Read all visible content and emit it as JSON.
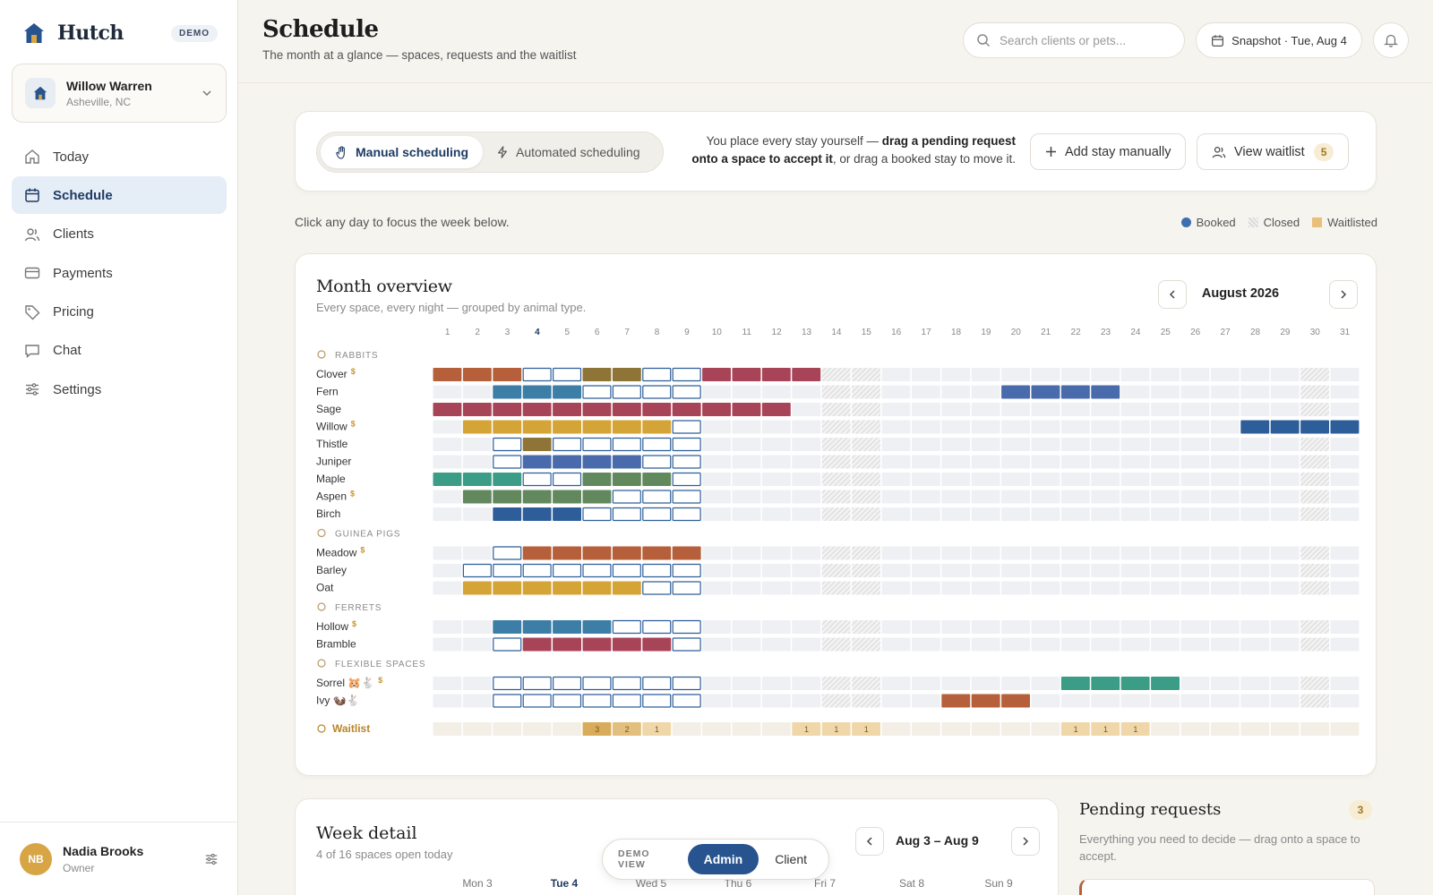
{
  "app": {
    "name": "Hutch",
    "badge": "DEMO"
  },
  "org": {
    "name": "Willow Warren",
    "location": "Asheville, NC"
  },
  "nav": [
    {
      "label": "Today",
      "icon": "home-icon",
      "active": false
    },
    {
      "label": "Schedule",
      "icon": "calendar-icon",
      "active": true
    },
    {
      "label": "Clients",
      "icon": "users-icon",
      "active": false
    },
    {
      "label": "Payments",
      "icon": "credit-card-icon",
      "active": false
    },
    {
      "label": "Pricing",
      "icon": "tag-icon",
      "active": false
    },
    {
      "label": "Chat",
      "icon": "chat-icon",
      "active": false
    },
    {
      "label": "Settings",
      "icon": "sliders-icon",
      "active": false
    }
  ],
  "user": {
    "initials": "NB",
    "name": "Nadia Brooks",
    "role": "Owner"
  },
  "header": {
    "title": "Schedule",
    "subtitle": "The month at a glance — spaces, requests and the waitlist",
    "search_placeholder": "Search clients or pets...",
    "snapshot_label": "Snapshot · Tue, Aug 4"
  },
  "toolbar": {
    "manual_label": "Manual scheduling",
    "automated_label": "Automated scheduling",
    "hint_pre": "You place every stay yourself — ",
    "hint_bold": "drag a pending request onto a space to accept it",
    "hint_post": ", or drag a booked stay to move it.",
    "add_label": "Add stay manually",
    "waitlist_label": "View waitlist",
    "waitlist_count": "5"
  },
  "click_hint": "Click any day to focus the week below.",
  "legend": {
    "booked": "Booked",
    "closed": "Closed",
    "waitlisted": "Waitlisted"
  },
  "month": {
    "title": "Month overview",
    "subtitle": "Every space, every night — grouped by animal type.",
    "label": "August 2026",
    "today_day": 4,
    "days": 31,
    "closed_days": [
      14,
      15,
      30
    ],
    "colors": {
      "R": "#b5603b",
      "D": "#a84458",
      "B": "#3c7ea6",
      "I": "#4a6bab",
      "N": "#2d5e9a",
      "G": "#d4a437",
      "O": "#8e7437",
      "T": "#3c9d86",
      "E": "#62895e",
      "P": "#7658a6"
    },
    "groups": [
      {
        "label": "RABBITS",
        "icon": "rabbit-icon",
        "rows": [
          {
            "name": "Clover",
            "paid": true,
            "cells": "RRRPPOOPPDDDD"
          },
          {
            "name": "Fern",
            "paid": false,
            "cells": "..BBBPPPP..........IIII"
          },
          {
            "name": "Sage",
            "paid": false,
            "cells": "DDDDDDDDDDDD"
          },
          {
            "name": "Willow",
            "paid": true,
            "cells": ".GGGGGGGP..................NNNN"
          },
          {
            "name": "Thistle",
            "paid": false,
            "cells": "..POPPPPP"
          },
          {
            "name": "Juniper",
            "paid": false,
            "cells": "..PIIIIPP"
          },
          {
            "name": "Maple",
            "paid": false,
            "cells": "TTTPPEEEP"
          },
          {
            "name": "Aspen",
            "paid": true,
            "cells": ".EEEEEPPP"
          },
          {
            "name": "Birch",
            "paid": false,
            "cells": "..NNNPPPP"
          }
        ]
      },
      {
        "label": "GUINEA PIGS",
        "icon": "guinea-pig-icon",
        "rows": [
          {
            "name": "Meadow",
            "paid": true,
            "cells": "..PRRRRRR"
          },
          {
            "name": "Barley",
            "paid": false,
            "cells": ".PPPPPPPP"
          },
          {
            "name": "Oat",
            "paid": false,
            "cells": ".GGGGGGPP"
          }
        ]
      },
      {
        "label": "FERRETS",
        "icon": "ferret-icon",
        "rows": [
          {
            "name": "Hollow",
            "paid": true,
            "cells": "..BBBBPPP"
          },
          {
            "name": "Bramble",
            "paid": false,
            "cells": "..PDDDDDP"
          }
        ]
      },
      {
        "label": "FLEXIBLE SPACES",
        "icon": "arrows-icon",
        "rows": [
          {
            "name": "Sorrel",
            "paid": true,
            "suffix": "🐹🐇",
            "cells": "..PPPPPPP............TTTT"
          },
          {
            "name": "Ivy",
            "paid": false,
            "suffix": "🦦🐇",
            "cells": "..PPPPPPP........RRR"
          }
        ]
      }
    ],
    "waitlist_label": "Waitlist",
    "waitlist": [
      0,
      0,
      0,
      0,
      0,
      3,
      2,
      1,
      0,
      0,
      0,
      0,
      1,
      1,
      1,
      0,
      0,
      0,
      0,
      0,
      0,
      1,
      1,
      1,
      0,
      0,
      0,
      0,
      0,
      0,
      0
    ]
  },
  "week": {
    "title": "Week detail",
    "subtitle": "4 of 16 spaces open today",
    "range": "Aug 3 – Aug 9",
    "days": [
      "Mon 3",
      "Tue 4",
      "Wed 5",
      "Thu 6",
      "Fri 7",
      "Sat 8",
      "Sun 9"
    ],
    "today_index": 1
  },
  "pending": {
    "title": "Pending requests",
    "count": "3",
    "subtitle": "Everything you need to decide — drag onto a space to accept."
  },
  "demo_view": {
    "label": "DEMO VIEW",
    "admin": "Admin",
    "client": "Client"
  }
}
